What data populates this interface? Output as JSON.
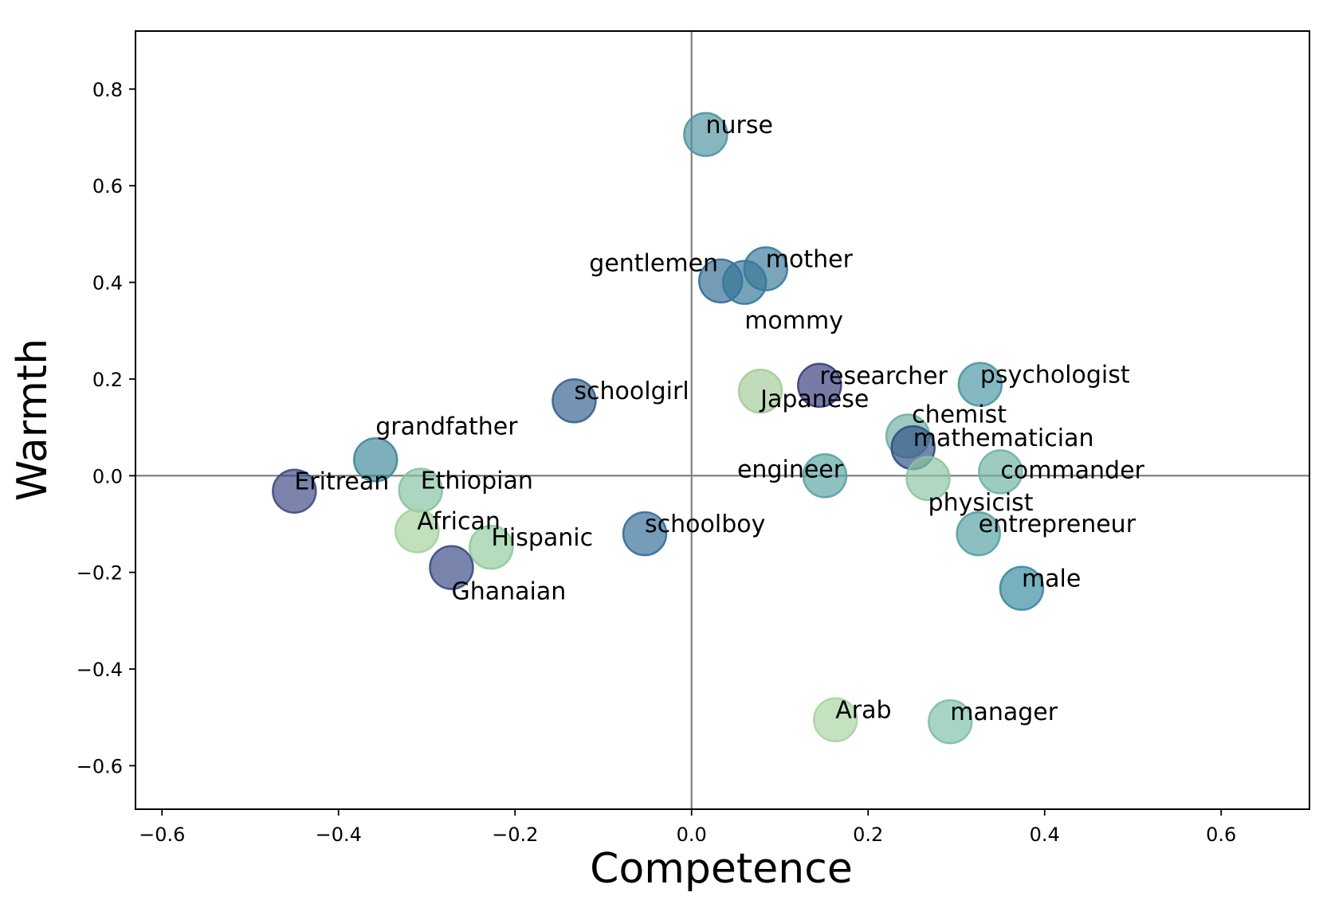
{
  "chart_data": {
    "type": "scatter",
    "title": "",
    "xlabel": "Competence",
    "ylabel": "Warmth",
    "xlim": [
      -0.63,
      0.7
    ],
    "ylim": [
      -0.69,
      0.92
    ],
    "x_ticks": [
      -0.6,
      -0.4,
      -0.2,
      0.0,
      0.2,
      0.4,
      0.6
    ],
    "x_tick_labels": [
      "−0.6",
      "−0.4",
      "−0.2",
      "0.0",
      "0.2",
      "0.4",
      "0.6"
    ],
    "y_ticks": [
      -0.6,
      -0.4,
      -0.2,
      0.0,
      0.2,
      0.4,
      0.6,
      0.8
    ],
    "y_tick_labels": [
      "−0.6",
      "−0.4",
      "−0.2",
      "0.0",
      "0.2",
      "0.4",
      "0.6",
      "0.8"
    ],
    "grid": false,
    "reference_lines": {
      "x": 0.0,
      "y": 0.0,
      "color": "#808080"
    },
    "points": [
      {
        "label": "nurse",
        "x": 0.016,
        "y": 0.706,
        "color": "#4f93a0"
      },
      {
        "label": "mother",
        "x": 0.084,
        "y": 0.428,
        "color": "#3b7a9a"
      },
      {
        "label": "gentlemen",
        "x": 0.033,
        "y": 0.403,
        "color": "#336d95"
      },
      {
        "label": "mommy",
        "x": 0.06,
        "y": 0.4,
        "color": "#367898"
      },
      {
        "label": "researcher",
        "x": 0.145,
        "y": 0.187,
        "color": "#3a3c7e"
      },
      {
        "label": "psychologist",
        "x": 0.327,
        "y": 0.189,
        "color": "#4b96a2"
      },
      {
        "label": "schoolgirl",
        "x": -0.133,
        "y": 0.155,
        "color": "#35608f"
      },
      {
        "label": "Japanese",
        "x": 0.078,
        "y": 0.175,
        "color": "#a3cc9a"
      },
      {
        "label": "chemist",
        "x": 0.245,
        "y": 0.082,
        "color": "#6db0a2"
      },
      {
        "label": "mathematician",
        "x": 0.251,
        "y": 0.058,
        "color": "#2f4f84"
      },
      {
        "label": "grandfather",
        "x": -0.358,
        "y": 0.033,
        "color": "#3f8a9a"
      },
      {
        "label": "engineer",
        "x": 0.151,
        "y": 0.0,
        "color": "#5aa3a2"
      },
      {
        "label": "commander",
        "x": 0.35,
        "y": 0.008,
        "color": "#70b3a4"
      },
      {
        "label": "physicist",
        "x": 0.268,
        "y": -0.006,
        "color": "#8cc4a2"
      },
      {
        "label": "Eritrean",
        "x": -0.45,
        "y": -0.032,
        "color": "#3f4a84"
      },
      {
        "label": "Ethiopian",
        "x": -0.307,
        "y": -0.03,
        "color": "#86c3a4"
      },
      {
        "label": "African",
        "x": -0.311,
        "y": -0.114,
        "color": "#a3d19b"
      },
      {
        "label": "Hispanic",
        "x": -0.227,
        "y": -0.148,
        "color": "#90cb9d"
      },
      {
        "label": "schoolboy",
        "x": -0.053,
        "y": -0.12,
        "color": "#336d98"
      },
      {
        "label": "entrepreneur",
        "x": 0.325,
        "y": -0.12,
        "color": "#55a0a2"
      },
      {
        "label": "Ghanaian",
        "x": -0.272,
        "y": -0.19,
        "color": "#3a4a84"
      },
      {
        "label": "male",
        "x": 0.374,
        "y": -0.233,
        "color": "#3a8aa0"
      },
      {
        "label": "Arab",
        "x": 0.163,
        "y": -0.505,
        "color": "#a8d4a0"
      },
      {
        "label": "manager",
        "x": 0.293,
        "y": -0.509,
        "color": "#7ebfaa"
      }
    ]
  }
}
